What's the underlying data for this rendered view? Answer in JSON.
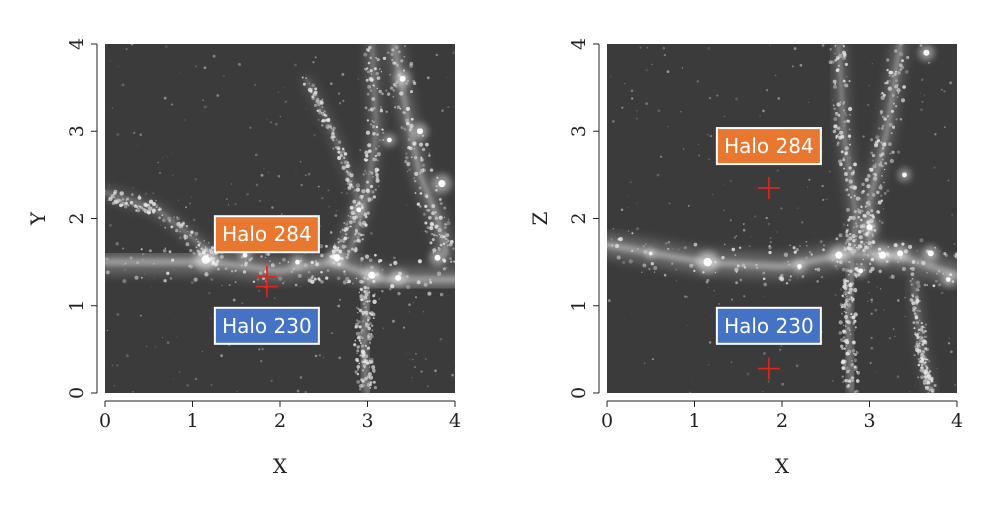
{
  "colors": {
    "background": "#3b3b3b",
    "halo_284": "#e8782f",
    "halo_230": "#4472c4",
    "marker": "#e3241c"
  },
  "chart_data": [
    {
      "type": "scatter",
      "xlabel": "X",
      "ylabel": "Y",
      "xlim": [
        0,
        4
      ],
      "ylim": [
        0,
        4
      ],
      "xticks": [
        "0",
        "1",
        "2",
        "3",
        "4"
      ],
      "yticks": [
        "0",
        "1",
        "2",
        "3",
        "4"
      ],
      "markers": [
        {
          "x": 1.85,
          "y": 1.33
        },
        {
          "x": 1.85,
          "y": 1.22
        }
      ],
      "annotations": [
        {
          "text": "Halo 284",
          "x": 1.85,
          "y": 1.82,
          "color": "#e8782f"
        },
        {
          "text": "Halo 230",
          "x": 1.85,
          "y": 0.77,
          "color": "#4472c4"
        }
      ]
    },
    {
      "type": "scatter",
      "xlabel": "X",
      "ylabel": "Z",
      "xlim": [
        0,
        4
      ],
      "ylim": [
        0,
        4
      ],
      "xticks": [
        "0",
        "1",
        "2",
        "3",
        "4"
      ],
      "yticks": [
        "0",
        "1",
        "2",
        "3",
        "4"
      ],
      "markers": [
        {
          "x": 1.85,
          "y": 2.35
        },
        {
          "x": 1.85,
          "y": 0.28
        }
      ],
      "annotations": [
        {
          "text": "Halo 284",
          "x": 1.85,
          "y": 2.83,
          "color": "#e8782f"
        },
        {
          "text": "Halo 230",
          "x": 1.85,
          "y": 0.77,
          "color": "#4472c4"
        }
      ]
    }
  ]
}
